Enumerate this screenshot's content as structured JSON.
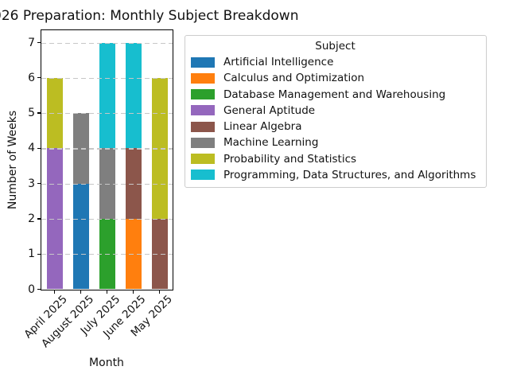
{
  "title": "026 Preparation: Monthly Subject Breakdown",
  "chart_data": {
    "type": "bar",
    "stacked": true,
    "title": "026 Preparation: Monthly Subject Breakdown",
    "xlabel": "Month",
    "ylabel": "Number of Weeks",
    "categories": [
      "April 2025",
      "August 2025",
      "July 2025",
      "June 2025",
      "May 2025"
    ],
    "yticks": [
      0,
      1,
      2,
      3,
      4,
      5,
      6,
      7
    ],
    "ylim": [
      0,
      7.35
    ],
    "grid": "horizontal-dashed",
    "gridline_color": "#c7c7c7",
    "legend_title": "Subject",
    "legend_position": "upper-right-outside",
    "series": [
      {
        "name": "Artificial Intelligence",
        "color": "#1f77b4",
        "values": [
          0,
          3,
          0,
          0,
          0
        ]
      },
      {
        "name": "Calculus and Optimization",
        "color": "#ff7f0e",
        "values": [
          0,
          0,
          0,
          2,
          0
        ]
      },
      {
        "name": "Database Management and Warehousing",
        "color": "#2ca02c",
        "values": [
          0,
          0,
          2,
          0,
          0
        ]
      },
      {
        "name": "General Aptitude",
        "color": "#9467bd",
        "values": [
          4,
          0,
          0,
          0,
          0
        ]
      },
      {
        "name": "Linear Algebra",
        "color": "#8c564b",
        "values": [
          0,
          0,
          0,
          2,
          2
        ]
      },
      {
        "name": "Machine Learning",
        "color": "#7f7f7f",
        "values": [
          0,
          2,
          2,
          0,
          0
        ]
      },
      {
        "name": "Probability and Statistics",
        "color": "#bcbd22",
        "values": [
          2,
          0,
          0,
          0,
          4
        ]
      },
      {
        "name": "Programming, Data Structures, and Algorithms",
        "color": "#17becf",
        "values": [
          0,
          0,
          3,
          3,
          0
        ]
      }
    ],
    "bar_totals": {
      "April 2025": 6,
      "August 2025": 5,
      "July 2025": 7,
      "June 2025": 7,
      "May 2025": 6
    }
  }
}
